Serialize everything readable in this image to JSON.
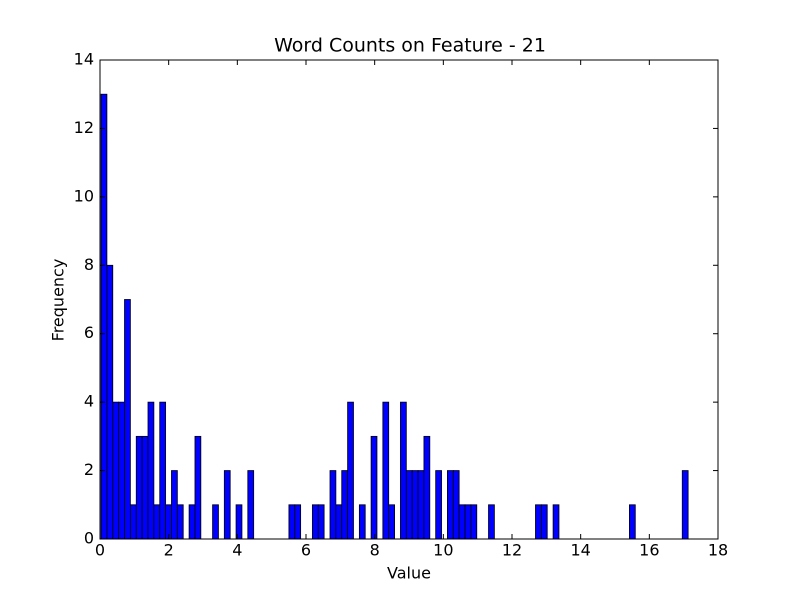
{
  "chart_data": {
    "type": "histogram",
    "title": "Word Counts on Feature - 21",
    "x_label": "Value",
    "y_label": "Frequency",
    "bins": [
      0.03,
      0.201,
      0.372,
      0.543,
      0.714,
      0.885,
      1.056,
      1.227,
      1.398,
      1.569,
      1.74,
      1.911,
      2.082,
      2.253,
      2.424,
      2.595,
      2.766,
      2.937,
      3.108,
      3.279,
      3.45,
      3.621,
      3.792,
      3.963,
      4.134,
      4.305,
      4.476,
      4.647,
      4.818,
      4.989,
      5.16,
      5.331,
      5.502,
      5.673,
      5.844,
      6.015,
      6.186,
      6.357,
      6.528,
      6.699,
      6.87,
      7.041,
      7.212,
      7.383,
      7.554,
      7.725,
      7.896,
      8.067,
      8.238,
      8.409,
      8.58,
      8.751,
      8.922,
      9.093,
      9.264,
      9.435,
      9.606,
      9.777,
      9.948,
      10.119,
      10.29,
      10.461,
      10.632,
      10.803,
      10.974,
      11.145,
      11.316,
      11.487,
      11.658,
      11.829,
      12,
      12.171,
      12.342,
      12.513,
      12.684,
      12.855,
      13.026,
      13.197,
      13.368,
      13.539,
      13.71,
      13.881,
      14.052,
      14.223,
      14.394,
      14.565,
      14.736,
      14.907,
      15.078,
      15.249,
      15.42,
      15.591,
      15.762,
      15.933,
      16.104,
      16.275,
      16.446,
      16.617,
      16.788,
      16.959,
      17.13
    ],
    "counts": [
      13,
      8,
      4,
      4,
      7,
      1,
      3,
      3,
      4,
      1,
      4,
      1,
      2,
      1,
      0,
      1,
      3,
      0,
      0,
      1,
      0,
      2,
      0,
      1,
      0,
      2,
      0,
      0,
      0,
      0,
      0,
      0,
      1,
      1,
      0,
      0,
      1,
      1,
      0,
      2,
      1,
      2,
      4,
      0,
      1,
      0,
      3,
      0,
      4,
      1,
      0,
      4,
      2,
      2,
      2,
      3,
      0,
      2,
      0,
      2,
      2,
      1,
      1,
      1,
      0,
      0,
      1,
      0,
      0,
      0,
      0,
      0,
      0,
      0,
      1,
      1,
      0,
      1,
      0,
      0,
      0,
      0,
      0,
      0,
      0,
      0,
      0,
      0,
      0,
      0,
      1,
      0,
      0,
      0,
      0,
      0,
      0,
      0,
      0,
      2
    ],
    "color": "#0000ff",
    "xlim": [
      0,
      18
    ],
    "ylim": [
      0,
      14
    ],
    "xticks": [
      0,
      2,
      4,
      6,
      8,
      10,
      12,
      14,
      16,
      18
    ],
    "yticks": [
      0,
      2,
      4,
      6,
      8,
      10,
      12,
      14
    ]
  }
}
